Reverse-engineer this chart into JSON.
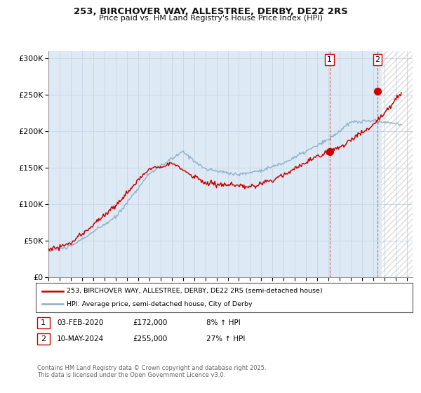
{
  "title1": "253, BIRCHOVER WAY, ALLESTREE, DERBY, DE22 2RS",
  "title2": "Price paid vs. HM Land Registry's House Price Index (HPI)",
  "xlim_start": 1995.0,
  "xlim_end": 2027.5,
  "ylim": [
    0,
    310000
  ],
  "bg_color": "#ffffff",
  "grid_color": "#c8d8e8",
  "plot_bg_color": "#ddeaf5",
  "red_line_color": "#cc0000",
  "blue_line_color": "#8baec8",
  "marker1_date": 2020.09,
  "marker1_price": 172000,
  "marker2_date": 2024.37,
  "marker2_price": 255000,
  "legend_label_red": "253, BIRCHOVER WAY, ALLESTREE, DERBY, DE22 2RS (semi-detached house)",
  "legend_label_blue": "HPI: Average price, semi-detached house, City of Derby",
  "annotation1_label": "1",
  "annotation1_date": "03-FEB-2020",
  "annotation1_price": "£172,000",
  "annotation1_hpi": "8% ↑ HPI",
  "annotation2_label": "2",
  "annotation2_date": "10-MAY-2024",
  "annotation2_price": "£255,000",
  "annotation2_hpi": "27% ↑ HPI",
  "footer": "Contains HM Land Registry data © Crown copyright and database right 2025.\nThis data is licensed under the Open Government Licence v3.0.",
  "yticks": [
    0,
    50000,
    100000,
    150000,
    200000,
    250000,
    300000
  ],
  "ytick_labels": [
    "£0",
    "£50K",
    "£100K",
    "£150K",
    "£200K",
    "£250K",
    "£300K"
  ]
}
